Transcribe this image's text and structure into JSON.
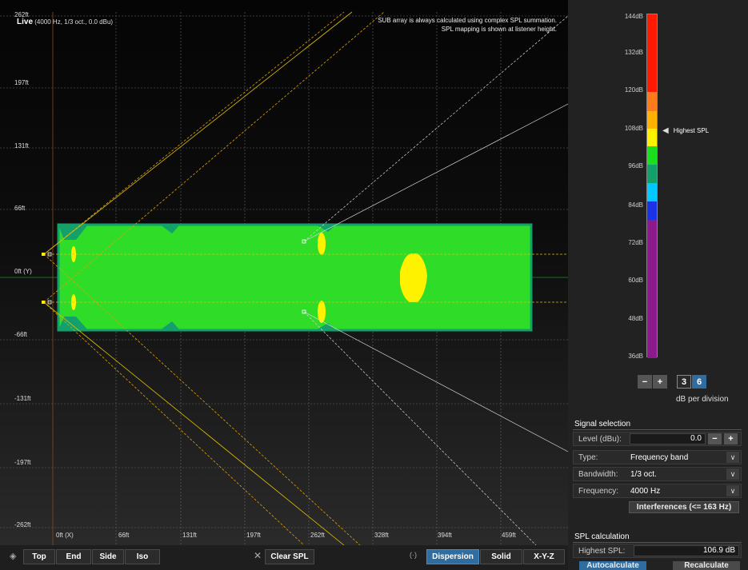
{
  "viewport": {
    "live_label": "Live",
    "live_params": "(4000 Hz, 1/3 oct., 0.0 dBu)",
    "note_line1": "SUB array is always calculated using complex SPL summation.",
    "note_line2": "SPL mapping is shown at listener height.",
    "y_labels": [
      "262ft",
      "197ft",
      "131ft",
      "66ft",
      "0ft (Y)",
      "-66ft",
      "-131ft",
      "-197ft",
      "-262ft"
    ],
    "x_labels": [
      "0ft (X)",
      "66ft",
      "131ft",
      "197ft",
      "262ft",
      "328ft",
      "394ft",
      "459ft"
    ]
  },
  "toolbar": {
    "layers_icon": "layers-icon",
    "top_label": "Top",
    "end_label": "End",
    "side_label": "Side",
    "iso_label": "Iso",
    "clear_icon": "close-icon",
    "clear_label": "Clear SPL",
    "dispersion_icon": "dispersion-icon",
    "dispersion_label": "Dispersion",
    "solid_label": "Solid",
    "xyz_label": "X-Y-Z"
  },
  "scale": {
    "db_labels": [
      "144dB",
      "132dB",
      "120dB",
      "108dB",
      "96dB",
      "84dB",
      "72dB",
      "60dB",
      "48dB",
      "36dB"
    ],
    "highest_label": "Highest SPL",
    "colors": [
      "#ff1a00",
      "#ff7a1a",
      "#ffb300",
      "#fff200",
      "#19e01a",
      "#14a06b",
      "#00c9ff",
      "#1a33e6",
      "#8c1a8c"
    ],
    "minus_label": "−",
    "plus_label": "+",
    "div_3": "3",
    "div_6": "6",
    "db_per_division": "dB per division"
  },
  "signal": {
    "title": "Signal selection",
    "level_label": "Level (dBu):",
    "level_value": "0.0",
    "type_label": "Type:",
    "type_value": "Frequency band",
    "bandwidth_label": "Bandwidth:",
    "bandwidth_value": "1/3 oct.",
    "frequency_label": "Frequency:",
    "frequency_value": "4000 Hz",
    "interferences_label": "Interferences (<= 163 Hz)"
  },
  "spl": {
    "title": "SPL calculation",
    "highest_label": "Highest SPL:",
    "highest_value": "106.9 dB",
    "autocalc_label": "Autocalculate",
    "recalc_label": "Recalculate"
  }
}
